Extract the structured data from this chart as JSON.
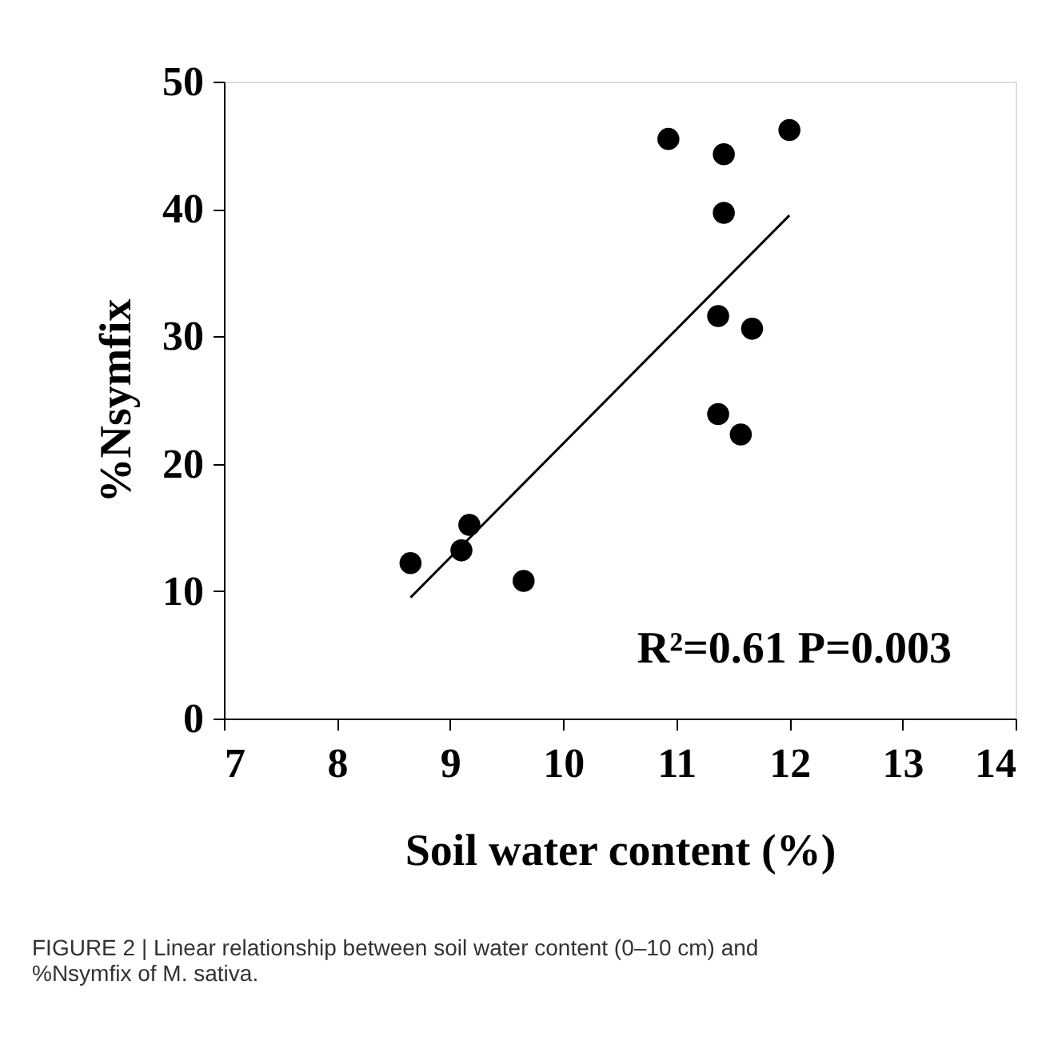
{
  "chart_data": {
    "type": "scatter",
    "xlabel": "Soil water content (%)",
    "ylabel": "%Nsymfix",
    "x": [
      8.65,
      9.1,
      9.17,
      9.65,
      10.93,
      11.42,
      11.42,
      11.37,
      11.67,
      11.37,
      11.57,
      12.0
    ],
    "series": [
      {
        "color": "#000000",
        "values": [
          12.2,
          13.2,
          15.2,
          10.8,
          45.5,
          44.3,
          39.7,
          31.6,
          30.6,
          23.9,
          22.3,
          46.2
        ]
      },
      {
        "type": "line",
        "color": "#000000",
        "marker": "none",
        "x": [
          8.65,
          12.0
        ],
        "values": [
          9.5,
          39.5
        ]
      }
    ],
    "xlim": [
      7,
      14
    ],
    "xticks": [
      7,
      8,
      9,
      10,
      11,
      12,
      13,
      14
    ],
    "ylim": [
      0,
      50
    ],
    "yticks": [
      0,
      10,
      20,
      30,
      40,
      50
    ],
    "marker": "circle",
    "grid": false,
    "annotations": [
      "R²=0.61 P=0.003",
      "FIGURE 2 | Linear relationship between soil water content (0–10 cm) and %Nsymfix of M. sativa."
    ]
  }
}
